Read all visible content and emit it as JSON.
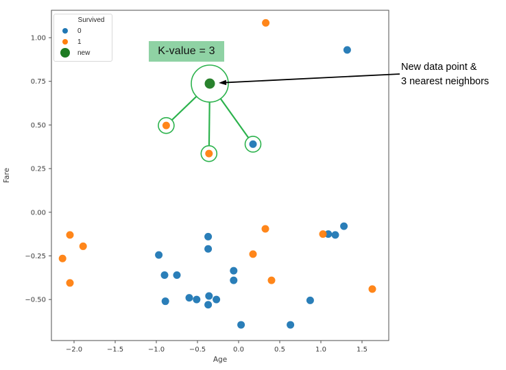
{
  "legend": {
    "title": "Survived",
    "items": [
      {
        "label": "0",
        "series": 0
      },
      {
        "label": "1",
        "series": 1
      },
      {
        "label": "new",
        "series": 2
      }
    ]
  },
  "annotations": {
    "k_value": "K-value = 3",
    "k_value_bg": "#8fd2a4",
    "note_line1": "New data point &",
    "note_line2": "3 nearest neighbors",
    "highlight_color": "#2bb24c",
    "arrow_color": "#000000"
  },
  "chart_data": {
    "type": "scatter",
    "title": "",
    "xlabel": "Age",
    "ylabel": "Fare",
    "xlim": [
      -2.275,
      1.825
    ],
    "ylim": [
      -0.735,
      1.157
    ],
    "grid": false,
    "legend_position": "upper left",
    "axis_color": "#4d4d4d",
    "tick_label_color": "#3a3a3a",
    "x_ticks": [
      {
        "v": -2.0,
        "label": "−2.0"
      },
      {
        "v": -1.5,
        "label": "−1.5"
      },
      {
        "v": -1.0,
        "label": "−1.0"
      },
      {
        "v": -0.5,
        "label": "−0.5"
      },
      {
        "v": 0.0,
        "label": "0.0"
      },
      {
        "v": 0.5,
        "label": "0.5"
      },
      {
        "v": 1.0,
        "label": "1.0"
      },
      {
        "v": 1.5,
        "label": "1.5"
      }
    ],
    "y_ticks": [
      {
        "v": 1.0,
        "label": "1.00"
      },
      {
        "v": 0.75,
        "label": "0.75"
      },
      {
        "v": 0.5,
        "label": "0.50"
      },
      {
        "v": 0.25,
        "label": "0.25"
      },
      {
        "v": 0.0,
        "label": "0.00"
      },
      {
        "v": -0.25,
        "label": "−0.25"
      },
      {
        "v": -0.5,
        "label": "−0.50"
      }
    ],
    "series": [
      {
        "name": "0",
        "color": "#1f77b4",
        "marker_radius": 5.5,
        "points": [
          [
            1.32,
            0.93
          ],
          [
            0.175,
            0.39
          ],
          [
            -0.97,
            -0.245
          ],
          [
            -0.9,
            -0.36
          ],
          [
            -0.75,
            -0.36
          ],
          [
            -0.89,
            -0.51
          ],
          [
            -0.6,
            -0.49
          ],
          [
            -0.51,
            -0.5
          ],
          [
            -0.36,
            -0.48
          ],
          [
            -0.37,
            -0.53
          ],
          [
            -0.27,
            -0.5
          ],
          [
            -0.37,
            -0.14
          ],
          [
            -0.37,
            -0.21
          ],
          [
            -0.06,
            -0.335
          ],
          [
            -0.06,
            -0.39
          ],
          [
            0.03,
            -0.645
          ],
          [
            0.63,
            -0.645
          ],
          [
            0.87,
            -0.505
          ],
          [
            1.09,
            -0.125
          ],
          [
            1.175,
            -0.13
          ],
          [
            1.28,
            -0.08
          ]
        ]
      },
      {
        "name": "1",
        "color": "#ff7f0e",
        "marker_radius": 5.5,
        "points": [
          [
            0.33,
            1.085
          ],
          [
            -0.88,
            0.497
          ],
          [
            -0.36,
            0.336
          ],
          [
            -2.05,
            -0.13
          ],
          [
            -1.89,
            -0.195
          ],
          [
            -2.14,
            -0.265
          ],
          [
            -2.05,
            -0.405
          ],
          [
            0.325,
            -0.095
          ],
          [
            0.175,
            -0.24
          ],
          [
            0.4,
            -0.39
          ],
          [
            1.025,
            -0.125
          ],
          [
            1.625,
            -0.44
          ]
        ]
      },
      {
        "name": "new",
        "color": "#1e7b22",
        "marker_radius": 7.5,
        "points": [
          [
            -0.35,
            0.737
          ]
        ]
      }
    ],
    "new_point": [
      -0.35,
      0.737
    ],
    "neighbors": [
      [
        -0.88,
        0.497
      ],
      [
        -0.36,
        0.336
      ],
      [
        0.175,
        0.39
      ]
    ]
  }
}
